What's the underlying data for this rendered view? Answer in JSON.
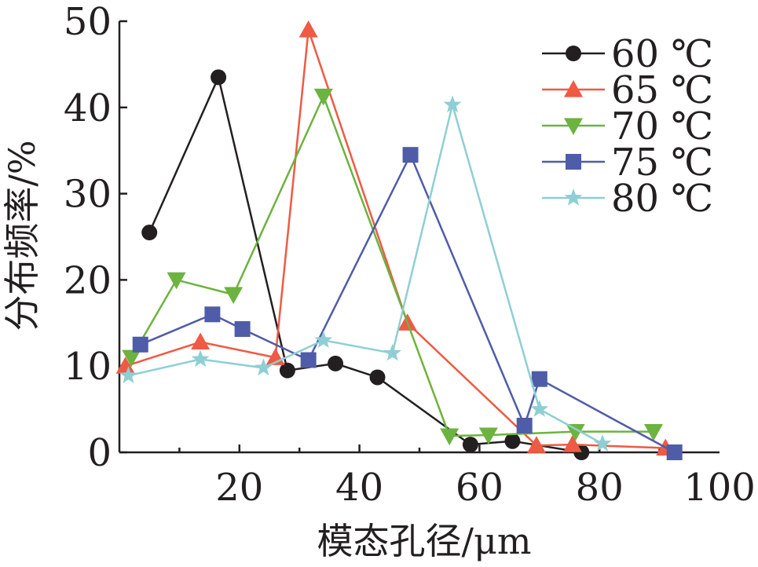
{
  "chart_data": {
    "type": "line",
    "xlabel": "模态孔径/μm",
    "ylabel": "分布频率/%",
    "xlim": [
      0,
      100
    ],
    "ylim": [
      0,
      50
    ],
    "xticks": [
      "20",
      "40",
      "60",
      "80",
      "100"
    ],
    "yticks": [
      "0",
      "10",
      "20",
      "30",
      "40",
      "50"
    ],
    "legend_position": "top-right",
    "series": [
      {
        "name": "60 ℃",
        "color": "#231f20",
        "marker": "circle",
        "points": [
          [
            5,
            25.5
          ],
          [
            16.5,
            43.5
          ],
          [
            28,
            9.5
          ],
          [
            36,
            10.3
          ],
          [
            43,
            8.7
          ],
          [
            58.5,
            0.9
          ],
          [
            65.5,
            1.3
          ],
          [
            77,
            0
          ]
        ]
      },
      {
        "name": "65 ℃",
        "color": "#ee5a43",
        "marker": "triangle-up",
        "points": [
          [
            1,
            10
          ],
          [
            13.5,
            12.8
          ],
          [
            26,
            11
          ],
          [
            31.5,
            49
          ],
          [
            48,
            15
          ],
          [
            69.5,
            0.8
          ],
          [
            75.5,
            0.9
          ],
          [
            91,
            0.5
          ]
        ]
      },
      {
        "name": "70 ℃",
        "color": "#6db33f",
        "marker": "triangle-down",
        "points": [
          [
            2,
            11
          ],
          [
            9.5,
            20
          ],
          [
            19,
            18.3
          ],
          [
            34,
            41.3
          ],
          [
            55,
            1.9
          ],
          [
            61.5,
            2
          ],
          [
            76,
            2.4
          ],
          [
            89,
            2.4
          ]
        ]
      },
      {
        "name": "75 ℃",
        "color": "#4f5ca8",
        "marker": "square",
        "points": [
          [
            3.5,
            12.5
          ],
          [
            15.5,
            16
          ],
          [
            20.5,
            14.3
          ],
          [
            31.5,
            10.7
          ],
          [
            48.5,
            34.5
          ],
          [
            67.5,
            3.1
          ],
          [
            70,
            8.5
          ],
          [
            92.5,
            0
          ]
        ]
      },
      {
        "name": "80 ℃",
        "color": "#8ecfd4",
        "marker": "star",
        "points": [
          [
            1.5,
            8.9
          ],
          [
            13.5,
            10.8
          ],
          [
            24,
            9.8
          ],
          [
            34,
            13
          ],
          [
            45.5,
            11.5
          ],
          [
            55.5,
            40.3
          ],
          [
            70,
            5
          ],
          [
            80.5,
            1
          ]
        ]
      }
    ]
  }
}
